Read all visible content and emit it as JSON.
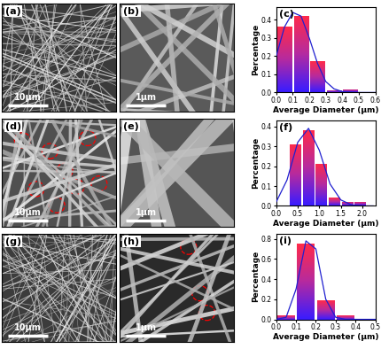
{
  "images": [
    {
      "panel": "(a)",
      "scale_bar": "10μm"
    },
    {
      "panel": "(b)",
      "scale_bar": "1μm"
    },
    {
      "panel": "(d)",
      "scale_bar": "10μm"
    },
    {
      "panel": "(e)",
      "scale_bar": "1μm"
    },
    {
      "panel": "(g)",
      "scale_bar": "10μm"
    },
    {
      "panel": "(h)",
      "scale_bar": "1μm"
    }
  ],
  "chart_data": [
    {
      "type": "histogram",
      "panel": "(c)",
      "x_label": "Average Diameter (μm)",
      "y_label": "Percentage",
      "bins": [
        0.0,
        0.1,
        0.2,
        0.3,
        0.4,
        0.5
      ],
      "counts": [
        0.36,
        0.42,
        0.17,
        0.01,
        0.015
      ],
      "color": "#b52aa0",
      "series": [
        {
          "type": "line",
          "color": "#1f1fd0",
          "x": [
            0.0,
            0.05,
            0.1,
            0.15,
            0.2,
            0.25,
            0.3,
            0.35,
            0.4,
            0.5,
            0.6
          ],
          "values": [
            0.2,
            0.36,
            0.44,
            0.42,
            0.3,
            0.16,
            0.06,
            0.02,
            0.005,
            0.0,
            0.0
          ]
        }
      ],
      "xlim": [
        0.0,
        0.6
      ],
      "xticks": [
        0.0,
        0.1,
        0.2,
        0.3,
        0.4,
        0.5,
        0.6
      ],
      "ylim": [
        0.0,
        0.47
      ],
      "yticks": [
        0.0,
        0.1,
        0.2,
        0.3,
        0.4
      ]
    },
    {
      "type": "histogram",
      "panel": "(f)",
      "x_label": "Average Diameter (μm)",
      "y_label": "Percentage",
      "bins": [
        0.3,
        0.6,
        0.9,
        1.2,
        1.5,
        1.8,
        2.1
      ],
      "counts": [
        0.31,
        0.38,
        0.21,
        0.04,
        0.02,
        0.02
      ],
      "color": "#b52aa0",
      "series": [
        {
          "type": "line",
          "color": "#1f1fd0",
          "x": [
            0.0,
            0.25,
            0.5,
            0.75,
            1.0,
            1.25,
            1.5,
            1.75,
            2.0,
            2.25
          ],
          "values": [
            0.02,
            0.13,
            0.32,
            0.39,
            0.28,
            0.11,
            0.03,
            0.005,
            0.0,
            0.0
          ]
        }
      ],
      "xlim": [
        0.0,
        2.3
      ],
      "xticks": [
        0.0,
        0.5,
        1.0,
        1.5,
        2.0
      ],
      "ylim": [
        0.0,
        0.43
      ],
      "yticks": [
        0.0,
        0.1,
        0.2,
        0.3,
        0.4
      ]
    },
    {
      "type": "histogram",
      "panel": "(i)",
      "x_label": "Average Diameter (μm)",
      "y_label": "Percentage",
      "bins": [
        0.0,
        0.1,
        0.2,
        0.3,
        0.4
      ],
      "counts": [
        0.04,
        0.75,
        0.19,
        0.04
      ],
      "color": "#b52aa0",
      "series": [
        {
          "type": "line",
          "color": "#1f1fd0",
          "x": [
            0.0,
            0.05,
            0.1,
            0.15,
            0.2,
            0.25,
            0.3,
            0.35,
            0.4,
            0.5
          ],
          "values": [
            0.0,
            0.02,
            0.3,
            0.78,
            0.7,
            0.2,
            0.02,
            0.0,
            0.0,
            0.0
          ]
        }
      ],
      "xlim": [
        0.0,
        0.5
      ],
      "xticks": [
        0.0,
        0.1,
        0.2,
        0.3,
        0.4,
        0.5
      ],
      "ylim": [
        0.0,
        0.85
      ],
      "yticks": [
        0.0,
        0.2,
        0.4,
        0.6,
        0.8
      ]
    }
  ]
}
